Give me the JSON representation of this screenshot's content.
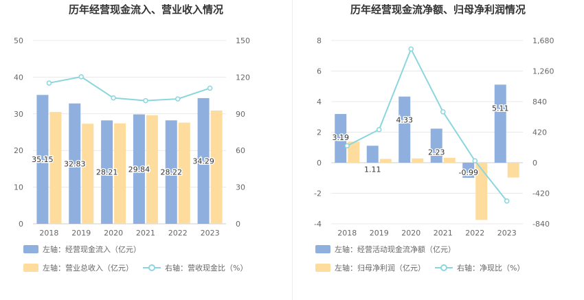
{
  "colors": {
    "bar_primary": "#8fb0de",
    "bar_secondary": "#fedc9e",
    "line": "#8ad6df",
    "axis_text": "#666666",
    "grid": "#e8e8e8",
    "title": "#333333",
    "value_label": "#333333"
  },
  "left_chart": {
    "title": "历年经营现金流入、营业收入情况",
    "legend": {
      "bar1": "左轴：经营现金流入（亿元）",
      "bar2": "左轴：营业总收入（亿元）",
      "line": "右轴：营收现金比（%）"
    },
    "left_ticks": [
      "0",
      "10",
      "20",
      "30",
      "40",
      "50"
    ],
    "right_ticks": [
      "0",
      "30",
      "60",
      "90",
      "120",
      "150"
    ],
    "x_ticks": [
      "2018",
      "2019",
      "2020",
      "2021",
      "2022",
      "2023"
    ],
    "bar1_labels": [
      "35.15",
      "32.83",
      "28.21",
      "29.84",
      "28.22",
      "34.29"
    ]
  },
  "right_chart": {
    "title": "历年经营现金流净额、归母净利润情况",
    "legend": {
      "bar1": "左轴：经营活动现金流净额（亿元）",
      "bar2": "左轴：归母净利润（亿元）",
      "line": "右轴：净现比（%）"
    },
    "left_ticks": [
      "-4",
      "-2",
      "0",
      "2",
      "4",
      "6",
      "8"
    ],
    "right_ticks": [
      "-840",
      "-420",
      "0",
      "420",
      "840",
      "1,260",
      "1,680"
    ],
    "x_ticks": [
      "2018",
      "2019",
      "2020",
      "2021",
      "2022",
      "2023"
    ],
    "bar1_labels": [
      "3.19",
      "1.11",
      "4.33",
      "2.23",
      "-0.99",
      "5.11"
    ]
  },
  "chart_data": [
    {
      "type": "bar",
      "title": "历年经营现金流入、营业收入情况",
      "categories": [
        "2018",
        "2019",
        "2020",
        "2021",
        "2022",
        "2023"
      ],
      "ylim": [
        0,
        50
      ],
      "y2lim": [
        0,
        150
      ],
      "grid": true,
      "legend_position": "bottom",
      "series": [
        {
          "name": "左轴：经营现金流入（亿元）",
          "type": "bar",
          "axis": "left",
          "values": [
            35.15,
            32.83,
            28.21,
            29.84,
            28.22,
            34.29
          ]
        },
        {
          "name": "左轴：营业总收入（亿元）",
          "type": "bar",
          "axis": "left",
          "values": [
            30.5,
            27.3,
            27.4,
            29.6,
            27.6,
            30.9
          ]
        },
        {
          "name": "右轴：营收现金比（%）",
          "type": "line",
          "axis": "right",
          "values": [
            115.2,
            120.3,
            103.0,
            100.8,
            102.2,
            111.0
          ]
        }
      ]
    },
    {
      "type": "bar",
      "title": "历年经营现金流净额、归母净利润情况",
      "categories": [
        "2018",
        "2019",
        "2020",
        "2021",
        "2022",
        "2023"
      ],
      "ylim": [
        -4,
        8
      ],
      "y2lim": [
        -840,
        1680
      ],
      "grid": true,
      "legend_position": "bottom",
      "series": [
        {
          "name": "左轴：经营活动现金流净额（亿元）",
          "type": "bar",
          "axis": "left",
          "values": [
            3.19,
            1.11,
            4.33,
            2.23,
            -0.99,
            5.11
          ]
        },
        {
          "name": "左轴：归母净利润（亿元）",
          "type": "bar",
          "axis": "left",
          "values": [
            1.38,
            0.25,
            0.28,
            0.32,
            -3.75,
            -0.97
          ]
        },
        {
          "name": "右轴：净现比（%）",
          "type": "line",
          "axis": "right",
          "values": [
            232,
            455,
            1563,
            700,
            26,
            -527
          ]
        }
      ]
    }
  ]
}
